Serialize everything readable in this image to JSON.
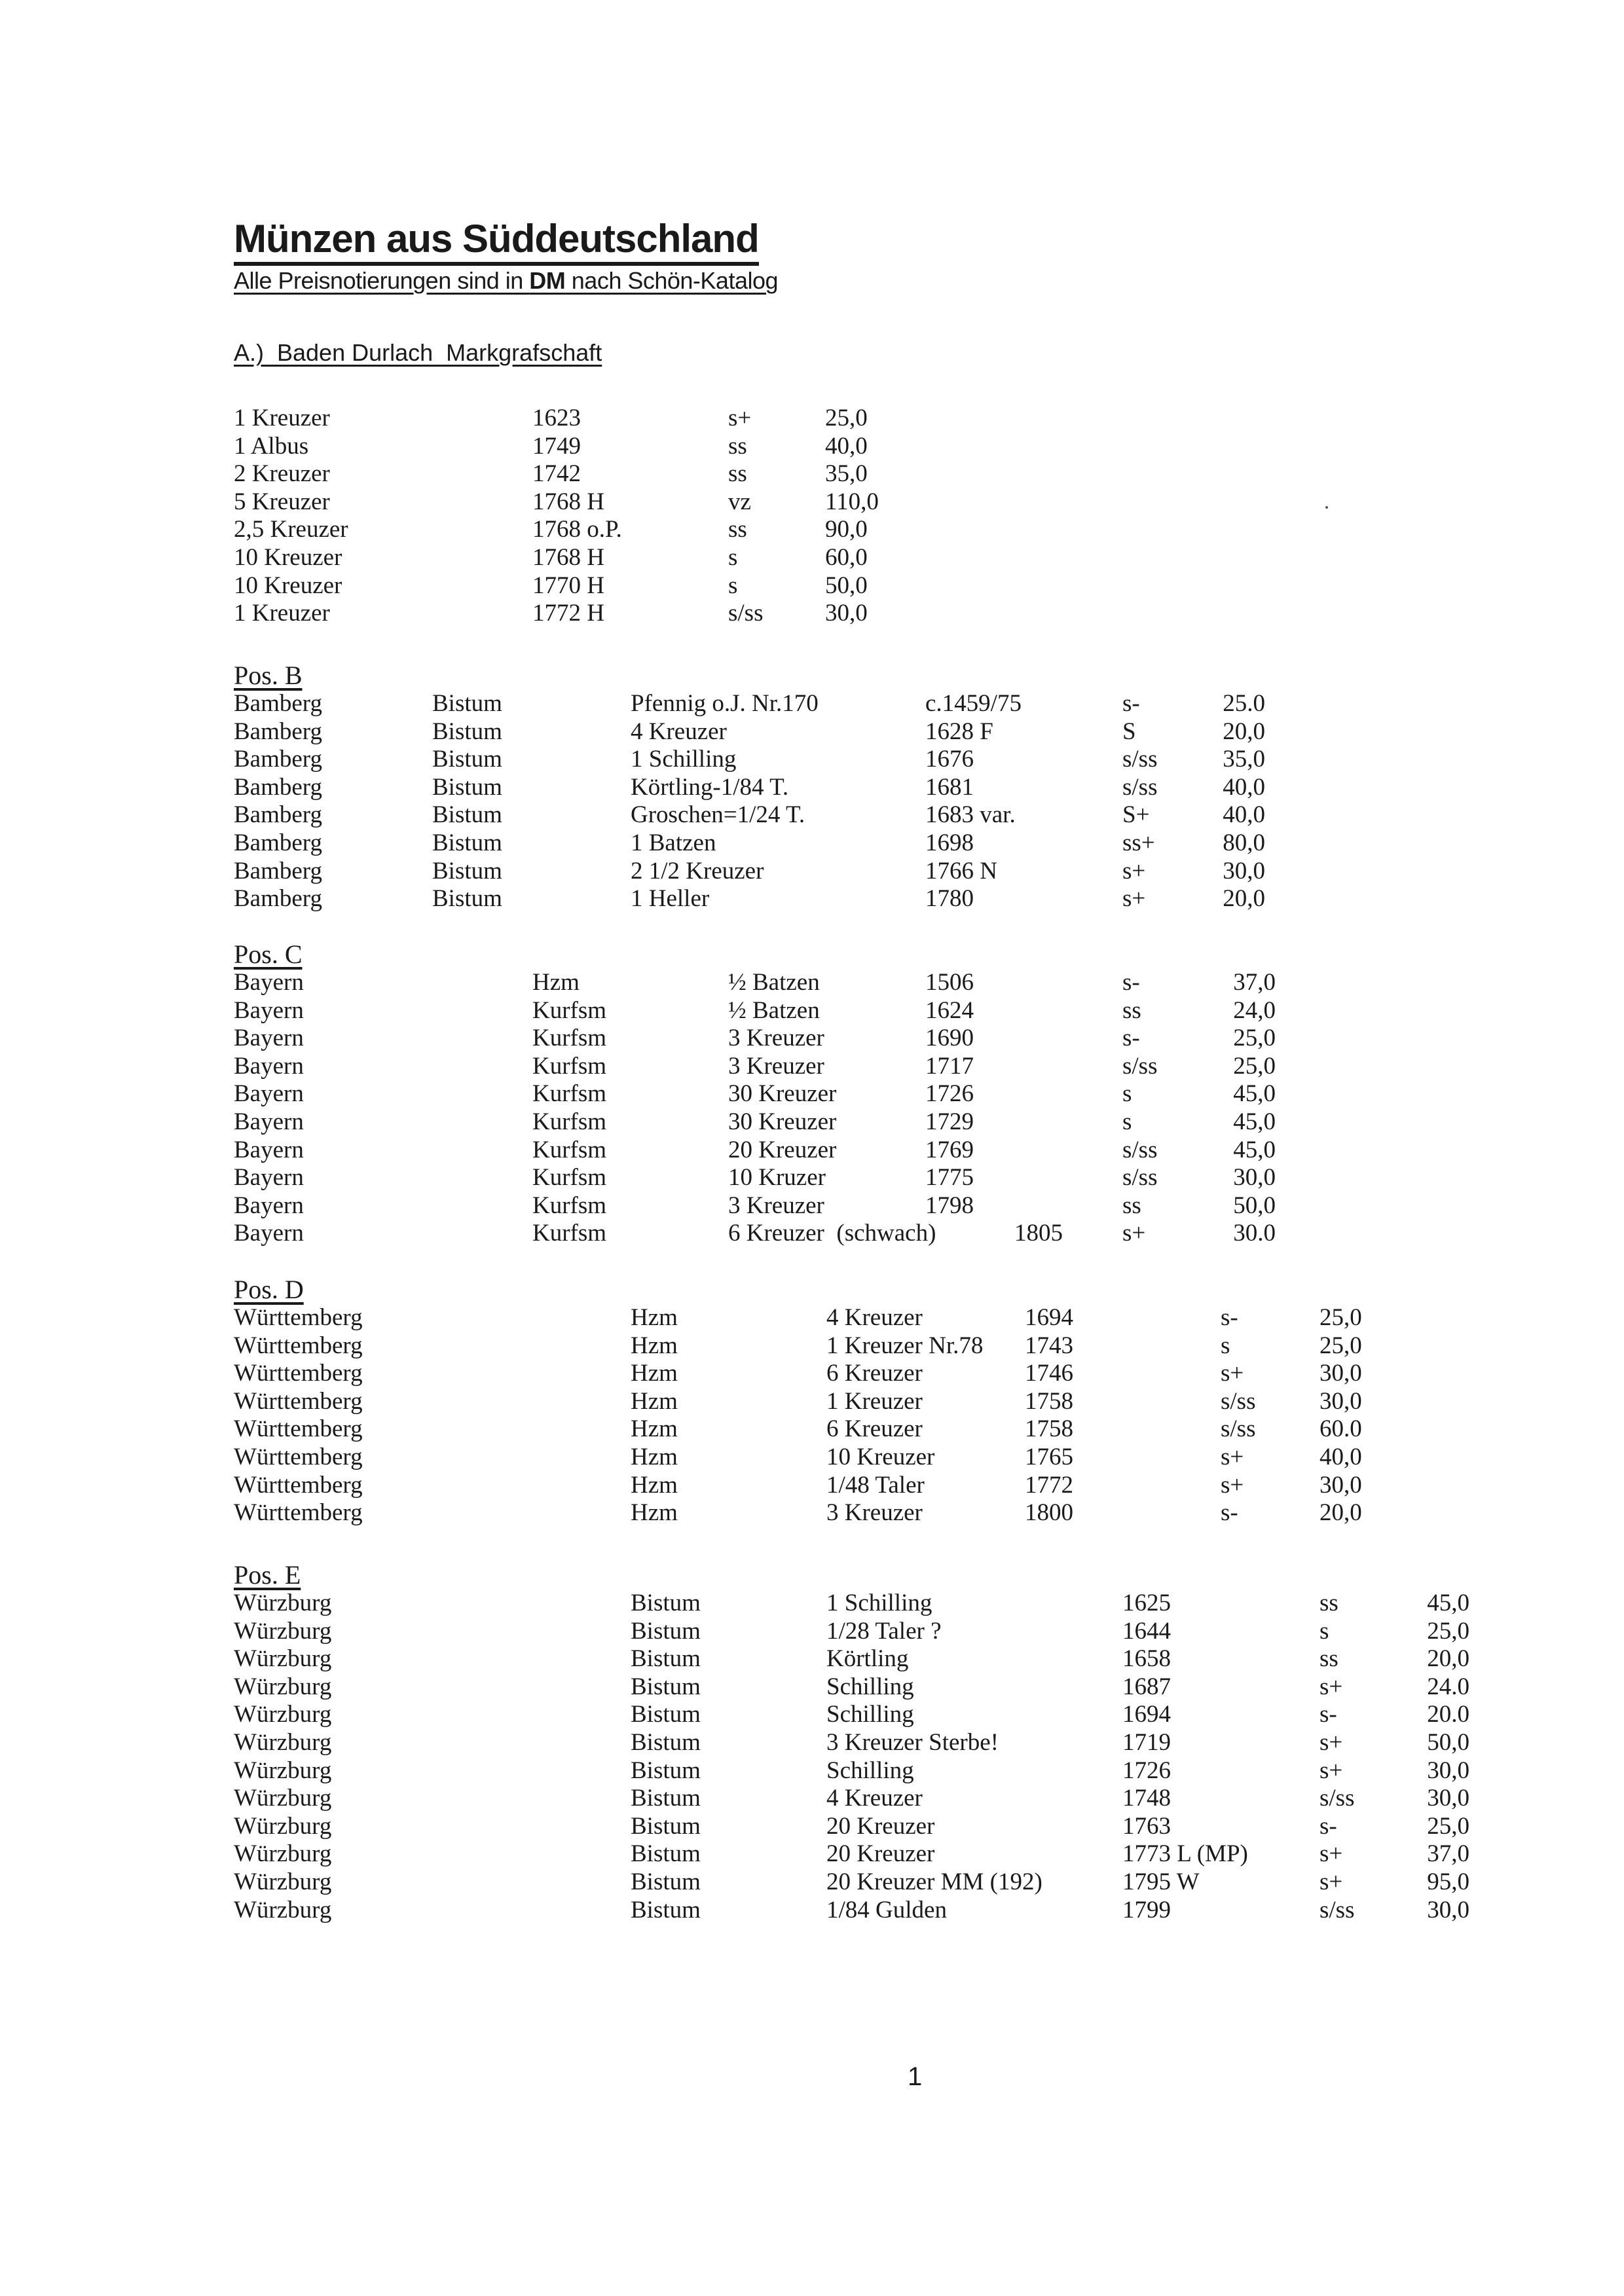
{
  "title": "Münzen aus Süddeutschland",
  "subtitle": {
    "pre": "Alle Preisnotierungen sind in ",
    "bold": "DM",
    "post": " nach Schön-Katalog"
  },
  "page_number": "1",
  "sections": [
    {
      "id": "a",
      "heading": "A.)  Baden Durlach  Markgrafschaft",
      "rows": [
        [
          "1 Kreuzer",
          "1623",
          "s+",
          "25,0"
        ],
        [
          "1 Albus",
          "1749",
          "ss",
          "40,0"
        ],
        [
          "2 Kreuzer",
          "1742",
          "ss",
          "35,0"
        ],
        [
          "5 Kreuzer",
          "1768 H",
          "vz",
          "110,0"
        ],
        [
          "2,5 Kreuzer",
          "1768 o.P.",
          "ss",
          "90,0"
        ],
        [
          "10 Kreuzer",
          "1768 H",
          "s",
          "60,0"
        ],
        [
          "10 Kreuzer",
          "1770 H",
          "s",
          "50,0"
        ],
        [
          "1 Kreuzer",
          "1772 H",
          "s/ss",
          "30,0"
        ]
      ]
    },
    {
      "id": "b",
      "heading": "Pos. B",
      "rows": [
        [
          "Bamberg",
          "Bistum",
          "Pfennig o.J. Nr.170",
          "c.1459/75",
          "s-",
          "25.0"
        ],
        [
          "Bamberg",
          "Bistum",
          "4 Kreuzer",
          "1628 F",
          "S",
          "20,0"
        ],
        [
          "Bamberg",
          "Bistum",
          "1 Schilling",
          "1676",
          "s/ss",
          "35,0"
        ],
        [
          "Bamberg",
          "Bistum",
          "Körtling-1/84 T.",
          "1681",
          "s/ss",
          "40,0"
        ],
        [
          "Bamberg",
          "Bistum",
          "Groschen=1/24 T.",
          "1683 var.",
          "S+",
          "40,0"
        ],
        [
          "Bamberg",
          "Bistum",
          "1 Batzen",
          "1698",
          "ss+",
          "80,0"
        ],
        [
          "Bamberg",
          "Bistum",
          "2 1/2 Kreuzer",
          "1766 N",
          "s+",
          "30,0"
        ],
        [
          "Bamberg",
          "Bistum",
          "1 Heller",
          "1780",
          "s+",
          "20,0"
        ]
      ]
    },
    {
      "id": "c",
      "heading": "Pos. C",
      "rows": [
        [
          "Bayern",
          "Hzm",
          "½ Batzen",
          "1506",
          "s-",
          "37,0"
        ],
        [
          "Bayern",
          "Kurfsm",
          "½ Batzen",
          "1624",
          "ss",
          "24,0"
        ],
        [
          "Bayern",
          "Kurfsm",
          "3 Kreuzer",
          "1690",
          "s-",
          "25,0"
        ],
        [
          "Bayern",
          "Kurfsm",
          "3 Kreuzer",
          "1717",
          "s/ss",
          "25,0"
        ],
        [
          "Bayern",
          "Kurfsm",
          "30 Kreuzer",
          "1726",
          "s",
          "45,0"
        ],
        [
          "Bayern",
          "Kurfsm",
          "30 Kreuzer",
          "1729",
          "s",
          "45,0"
        ],
        [
          "Bayern",
          "Kurfsm",
          "20 Kreuzer",
          "1769",
          "s/ss",
          "45,0"
        ],
        [
          "Bayern",
          "Kurfsm",
          "10 Kruzer",
          "1775",
          "s/ss",
          "30,0"
        ],
        [
          "Bayern",
          "Kurfsm",
          "3 Kreuzer",
          "1798",
          "ss",
          "50,0"
        ],
        [
          "Bayern",
          "Kurfsm",
          "6 Kreuzer  (schwach)",
          "1805",
          "s+",
          "30.0"
        ]
      ]
    },
    {
      "id": "d",
      "heading": "Pos. D",
      "rows": [
        [
          "Württemberg",
          "Hzm",
          "4 Kreuzer",
          "1694",
          "s-",
          "25,0"
        ],
        [
          "Württemberg",
          "Hzm",
          "1 Kreuzer Nr.78",
          "1743",
          "s",
          "25,0"
        ],
        [
          "Württemberg",
          "Hzm",
          "6 Kreuzer",
          "1746",
          "s+",
          "30,0"
        ],
        [
          "Württemberg",
          "Hzm",
          "1 Kreuzer",
          "1758",
          "s/ss",
          "30,0"
        ],
        [
          "Württemberg",
          "Hzm",
          "6 Kreuzer",
          "1758",
          "s/ss",
          "60.0"
        ],
        [
          "Württemberg",
          "Hzm",
          "10 Kreuzer",
          "1765",
          "s+",
          "40,0"
        ],
        [
          "Württemberg",
          "Hzm",
          "1/48 Taler",
          "1772",
          "s+",
          "30,0"
        ],
        [
          "Württemberg",
          "Hzm",
          "3 Kreuzer",
          "1800",
          "s-",
          "20,0"
        ]
      ]
    },
    {
      "id": "e",
      "heading": "Pos. E",
      "rows": [
        [
          "Würzburg",
          "Bistum",
          "1 Schilling",
          "1625",
          "ss",
          "45,0"
        ],
        [
          "Würzburg",
          "Bistum",
          "1/28 Taler ?",
          "1644",
          "s",
          "25,0"
        ],
        [
          "Würzburg",
          "Bistum",
          "Körtling",
          "1658",
          "ss",
          "20,0"
        ],
        [
          "Würzburg",
          "Bistum",
          "Schilling",
          "1687",
          "s+",
          "24.0"
        ],
        [
          "Würzburg",
          "Bistum",
          "Schilling",
          "1694",
          "s-",
          "20.0"
        ],
        [
          "Würzburg",
          "Bistum",
          "3 Kreuzer Sterbe!",
          "1719",
          "s+",
          "50,0"
        ],
        [
          "Würzburg",
          "Bistum",
          "Schilling",
          "1726",
          "s+",
          "30,0"
        ],
        [
          "Würzburg",
          "Bistum",
          "4 Kreuzer",
          "1748",
          "s/ss",
          "30,0"
        ],
        [
          "Würzburg",
          "Bistum",
          "20 Kreuzer",
          "1763",
          "s-",
          "25,0"
        ],
        [
          "Würzburg",
          "Bistum",
          "20 Kreuzer",
          "1773 L (MP)",
          "s+",
          "37,0"
        ],
        [
          "Würzburg",
          "Bistum",
          "20 Kreuzer MM (192)",
          "1795 W",
          "s+",
          "95,0"
        ],
        [
          "Würzburg",
          "Bistum",
          "1/84 Gulden",
          "1799",
          "s/ss",
          "30,0"
        ]
      ]
    }
  ]
}
